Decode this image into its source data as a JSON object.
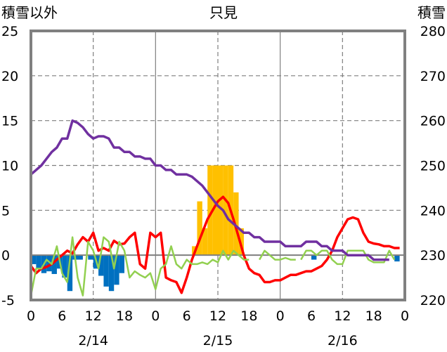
{
  "chart_data": {
    "type": "bar+line",
    "title": "只見",
    "left_axis_label": "積雪以外",
    "right_axis_label": "積雪",
    "left_ylim": [
      -5,
      25
    ],
    "left_ticks": [
      "25",
      "20",
      "15",
      "10",
      "5",
      "0",
      "-5"
    ],
    "right_ylim": [
      220,
      280
    ],
    "right_ticks": [
      "280",
      "270",
      "260",
      "250",
      "240",
      "230",
      "220"
    ],
    "x_hours": [
      0,
      72
    ],
    "x_tick_labels": [
      "0",
      "6",
      "12",
      "18",
      "0",
      "6",
      "12",
      "18",
      "0",
      "6",
      "12",
      "18",
      "0"
    ],
    "date_labels": [
      "2/14",
      "2/15",
      "2/16"
    ],
    "grid": "dashed",
    "colors": {
      "temperature": "#ff0000",
      "snow_depth": "#7030a0",
      "wind": "#92d050",
      "precipitation": "#ffc000",
      "sunshine": "#0070c0"
    },
    "series": [
      {
        "key": "precipitation",
        "axis": "left",
        "style": "bar",
        "points": [
          [
            32,
            1
          ],
          [
            33,
            6
          ],
          [
            34,
            3
          ],
          [
            35,
            10
          ],
          [
            36,
            10
          ],
          [
            37,
            10
          ],
          [
            38,
            10
          ],
          [
            39,
            10
          ],
          [
            40,
            7
          ],
          [
            41,
            3
          ]
        ]
      },
      {
        "key": "sunshine",
        "axis": "left",
        "style": "bar-negative",
        "points": [
          [
            1,
            -1.0
          ],
          [
            2,
            -1.5
          ],
          [
            3,
            -2.0
          ],
          [
            4,
            -1.8
          ],
          [
            5,
            -2.1
          ],
          [
            6,
            -1.5
          ],
          [
            7,
            -2.5
          ],
          [
            8,
            -4.0
          ],
          [
            9,
            -0.5
          ],
          [
            10,
            -0.5
          ],
          [
            12,
            -0.5
          ],
          [
            13,
            -1.5
          ],
          [
            14,
            -2.3
          ],
          [
            15,
            -3.5
          ],
          [
            16,
            -4.0
          ],
          [
            17,
            -3.3
          ],
          [
            18,
            -2.0
          ],
          [
            55,
            -0.5
          ],
          [
            71,
            -0.7
          ]
        ]
      },
      {
        "key": "temperature",
        "axis": "left",
        "style": "line",
        "points": [
          [
            0,
            -1.2
          ],
          [
            1,
            -2
          ],
          [
            2,
            -1.5
          ],
          [
            3,
            -1.3
          ],
          [
            4,
            -1
          ],
          [
            5,
            -0.5
          ],
          [
            6,
            0
          ],
          [
            7,
            0.5
          ],
          [
            8,
            0.2
          ],
          [
            9,
            1.2
          ],
          [
            10,
            2
          ],
          [
            11,
            1.5
          ],
          [
            12,
            2.5
          ],
          [
            13,
            0.5
          ],
          [
            14,
            0.8
          ],
          [
            15,
            0.5
          ],
          [
            16,
            1.6
          ],
          [
            17,
            1.2
          ],
          [
            18,
            1.3
          ],
          [
            19,
            2.0
          ],
          [
            20,
            2.5
          ],
          [
            21,
            -1
          ],
          [
            22,
            -1.5
          ],
          [
            23,
            2.5
          ],
          [
            24,
            2.0
          ],
          [
            25,
            2.5
          ],
          [
            26,
            -2.5
          ],
          [
            27,
            -2.8
          ],
          [
            28,
            -3
          ],
          [
            29,
            -4.2
          ],
          [
            30,
            -2.5
          ],
          [
            31,
            -0.5
          ],
          [
            32,
            1
          ],
          [
            33,
            2.5
          ],
          [
            34,
            4
          ],
          [
            35,
            5
          ],
          [
            36,
            6
          ],
          [
            37,
            6.5
          ],
          [
            38,
            5.8
          ],
          [
            39,
            4
          ],
          [
            40,
            2
          ],
          [
            41,
            0
          ],
          [
            42,
            -1.5
          ],
          [
            43,
            -2
          ],
          [
            44,
            -2.2
          ],
          [
            45,
            -3
          ],
          [
            46,
            -3
          ],
          [
            47,
            -2.8
          ],
          [
            48,
            -2.8
          ],
          [
            49,
            -2.5
          ],
          [
            50,
            -2.2
          ],
          [
            51,
            -2.2
          ],
          [
            52,
            -2
          ],
          [
            53,
            -1.8
          ],
          [
            54,
            -1.8
          ],
          [
            55,
            -1.5
          ],
          [
            56,
            -1.2
          ],
          [
            57,
            -0.5
          ],
          [
            58,
            0.5
          ],
          [
            59,
            2
          ],
          [
            60,
            3
          ],
          [
            61,
            4
          ],
          [
            62,
            4.2
          ],
          [
            63,
            4
          ],
          [
            64,
            2.5
          ],
          [
            65,
            1.5
          ],
          [
            66,
            1.3
          ],
          [
            67,
            1.2
          ],
          [
            68,
            1
          ],
          [
            69,
            1
          ],
          [
            70,
            0.8
          ],
          [
            71,
            0.8
          ]
        ]
      },
      {
        "key": "wind",
        "axis": "left",
        "style": "line",
        "points": [
          [
            0,
            -4.5
          ],
          [
            1,
            -1.5
          ],
          [
            2,
            -1.5
          ],
          [
            3,
            -0.5
          ],
          [
            4,
            -1
          ],
          [
            5,
            1
          ],
          [
            6,
            -2
          ],
          [
            7,
            -3
          ],
          [
            8,
            2
          ],
          [
            9,
            -2.5
          ],
          [
            10,
            -4.5
          ],
          [
            11,
            1.5
          ],
          [
            12,
            0.5
          ],
          [
            13,
            -1.5
          ],
          [
            14,
            2
          ],
          [
            15,
            1.5
          ],
          [
            16,
            -1.5
          ],
          [
            17,
            1.5
          ],
          [
            18,
            0.5
          ],
          [
            19,
            -2.5
          ],
          [
            20,
            -1.8
          ],
          [
            21,
            -2.2
          ],
          [
            22,
            -2.5
          ],
          [
            23,
            -2
          ],
          [
            24,
            -3.8
          ],
          [
            25,
            -1.5
          ],
          [
            26,
            -1
          ],
          [
            27,
            1
          ],
          [
            28,
            -1
          ],
          [
            29,
            -1.5
          ],
          [
            30,
            -0.5
          ],
          [
            31,
            -1
          ],
          [
            32,
            -1
          ],
          [
            33,
            -0.8
          ],
          [
            34,
            -1
          ],
          [
            35,
            -0.5
          ],
          [
            36,
            -0.8
          ],
          [
            37,
            0.5
          ],
          [
            38,
            -0.5
          ],
          [
            39,
            0.5
          ],
          [
            40,
            0
          ],
          [
            41,
            -0.5
          ],
          [
            42,
            -0.5
          ],
          [
            null,
            null
          ],
          [
            44,
            -0.5
          ],
          [
            45,
            0.5
          ],
          [
            46,
            0
          ],
          [
            47,
            -0.5
          ],
          [
            48,
            -0.5
          ],
          [
            49,
            -0.3
          ],
          [
            50,
            -0.5
          ],
          [
            51,
            -0.5
          ],
          [
            null,
            null
          ],
          [
            52,
            -0.5
          ],
          [
            53,
            0.5
          ],
          [
            54,
            0.5
          ],
          [
            55,
            0
          ],
          [
            56,
            0.5
          ],
          [
            57,
            0.5
          ],
          [
            58,
            -0.5
          ],
          [
            59,
            -1
          ],
          [
            60,
            -1
          ],
          [
            61,
            0.5
          ],
          [
            62,
            0.5
          ],
          [
            63,
            0.5
          ],
          [
            64,
            0.5
          ],
          [
            65,
            -0.5
          ],
          [
            66,
            -0.8
          ],
          [
            67,
            -0.8
          ],
          [
            68,
            -0.8
          ],
          [
            69,
            0.5
          ],
          [
            70,
            -0.5
          ]
        ]
      },
      {
        "key": "snow_depth",
        "axis": "right",
        "style": "line",
        "points": [
          [
            0,
            248
          ],
          [
            1,
            249
          ],
          [
            2,
            250
          ],
          [
            3,
            251.5
          ],
          [
            4,
            253
          ],
          [
            5,
            254
          ],
          [
            6,
            256
          ],
          [
            7,
            256
          ],
          [
            8,
            260
          ],
          [
            9,
            259.5
          ],
          [
            10,
            258.5
          ],
          [
            11,
            257
          ],
          [
            12,
            256
          ],
          [
            13,
            256.5
          ],
          [
            14,
            256.5
          ],
          [
            15,
            256
          ],
          [
            16,
            254
          ],
          [
            17,
            254
          ],
          [
            18,
            253
          ],
          [
            19,
            253
          ],
          [
            20,
            252
          ],
          [
            21,
            252
          ],
          [
            22,
            251.5
          ],
          [
            23,
            251.5
          ],
          [
            24,
            250
          ],
          [
            25,
            250
          ],
          [
            26,
            249
          ],
          [
            27,
            249
          ],
          [
            28,
            248
          ],
          [
            29,
            248
          ],
          [
            30,
            248
          ],
          [
            31,
            247.5
          ],
          [
            32,
            246.5
          ],
          [
            33,
            245.5
          ],
          [
            34,
            244
          ],
          [
            35,
            242.5
          ],
          [
            36,
            241
          ],
          [
            37,
            240
          ],
          [
            38,
            238
          ],
          [
            39,
            237
          ],
          [
            40,
            236
          ],
          [
            41,
            235
          ],
          [
            42,
            235
          ],
          [
            43,
            234
          ],
          [
            44,
            234
          ],
          [
            45,
            233
          ],
          [
            46,
            233
          ],
          [
            47,
            233
          ],
          [
            48,
            233
          ],
          [
            49,
            232
          ],
          [
            50,
            232
          ],
          [
            51,
            232
          ],
          [
            52,
            232
          ],
          [
            53,
            233
          ],
          [
            54,
            233
          ],
          [
            55,
            233
          ],
          [
            56,
            232
          ],
          [
            57,
            232
          ],
          [
            58,
            231
          ],
          [
            59,
            231
          ],
          [
            60,
            231
          ],
          [
            61,
            230
          ],
          [
            62,
            230
          ],
          [
            63,
            230
          ],
          [
            64,
            230
          ],
          [
            65,
            230
          ],
          [
            66,
            229
          ],
          [
            67,
            229
          ],
          [
            68,
            229
          ],
          [
            69,
            229
          ]
        ]
      }
    ]
  }
}
